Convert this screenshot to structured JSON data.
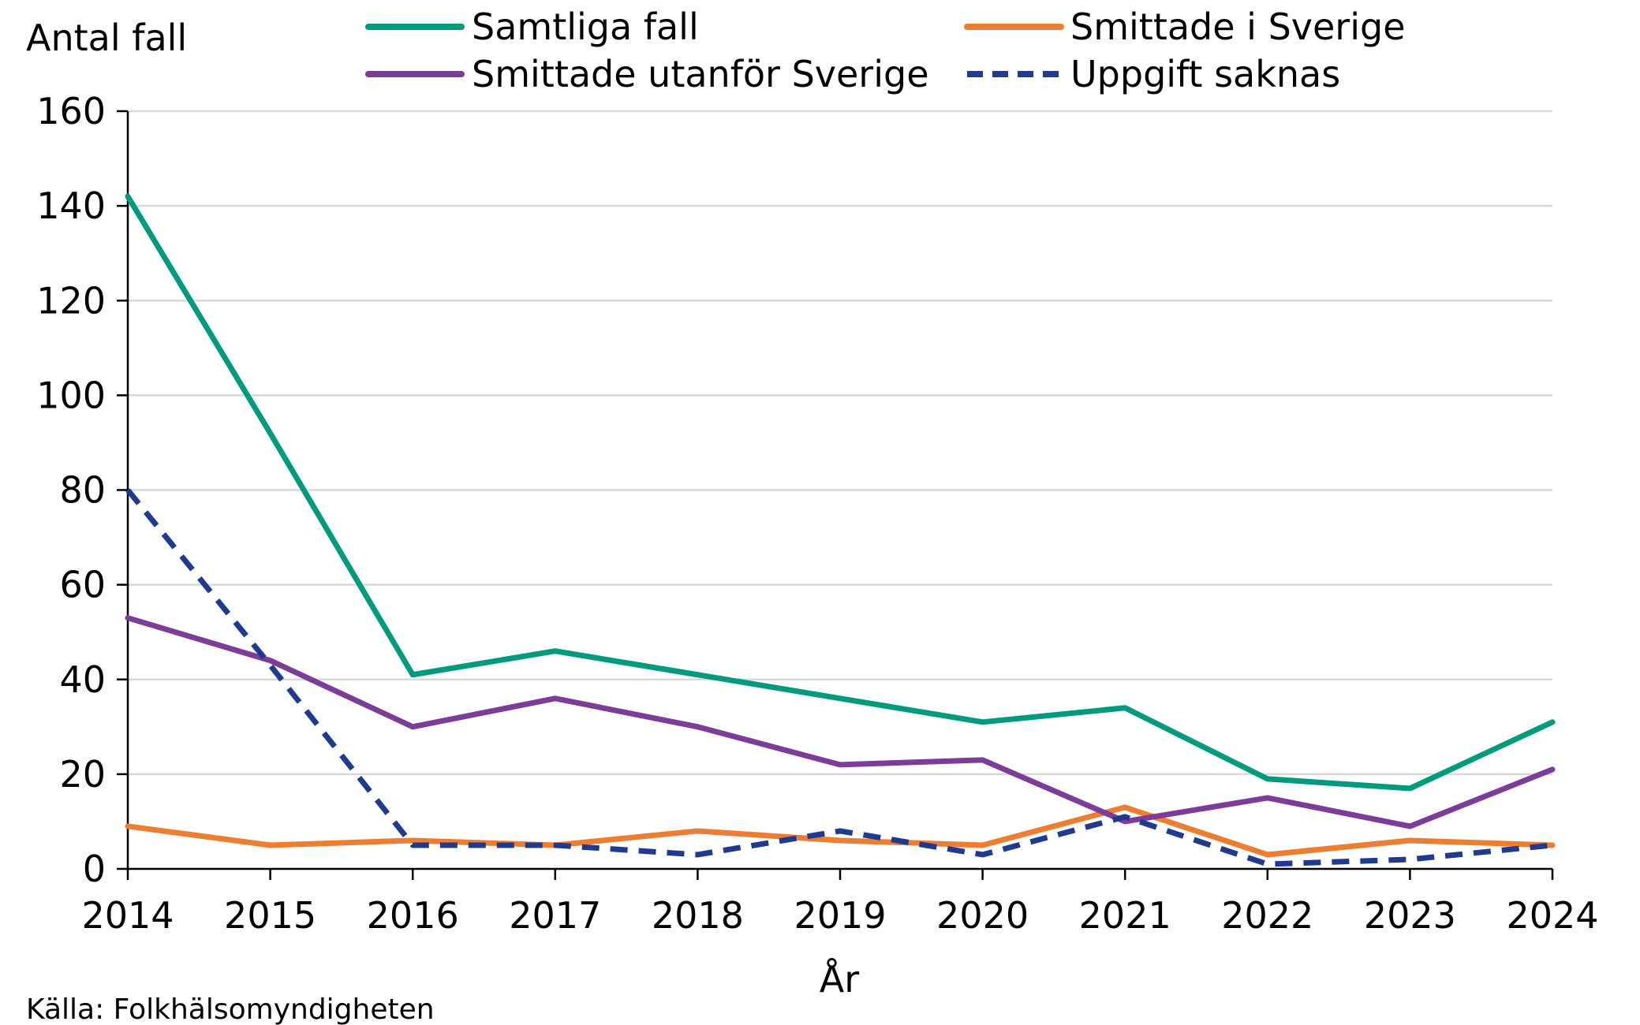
{
  "chart_data": {
    "type": "line",
    "title": "",
    "ylabel": "Antal fall",
    "xlabel": "År",
    "source": "Källa: Folkhälsomyndigheten",
    "ylim": [
      0,
      160
    ],
    "yticks": [
      "0",
      "20",
      "40",
      "60",
      "80",
      "100",
      "120",
      "140",
      "160"
    ],
    "categories": [
      "2014",
      "2015",
      "2016",
      "2017",
      "2018",
      "2019",
      "2020",
      "2021",
      "2022",
      "2023",
      "2024"
    ],
    "grid": true,
    "legend_position": "top",
    "series": [
      {
        "name": "Samtliga fall",
        "color": "#009b7d",
        "dashed": false,
        "values": [
          142,
          92,
          41,
          46,
          41,
          36,
          31,
          34,
          19,
          17,
          31
        ]
      },
      {
        "name": "Smittade i Sverige",
        "color": "#ed7d31",
        "dashed": false,
        "values": [
          9,
          5,
          6,
          5,
          8,
          6,
          5,
          13,
          3,
          6,
          5
        ]
      },
      {
        "name": "Smittade utanför Sverige",
        "color": "#7d3c98",
        "dashed": false,
        "values": [
          53,
          44,
          30,
          36,
          30,
          22,
          23,
          10,
          15,
          9,
          21
        ]
      },
      {
        "name": "Uppgift saknas",
        "color": "#1f3b8f",
        "dashed": true,
        "values": [
          80,
          43,
          5,
          5,
          3,
          8,
          3,
          11,
          1,
          2,
          5
        ]
      }
    ]
  }
}
